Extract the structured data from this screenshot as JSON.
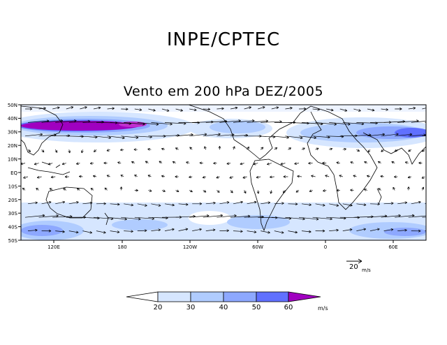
{
  "header": {
    "title": "INPE/CPTEC",
    "subtitle": "Vento em 200 hPa DEZ/2005"
  },
  "map": {
    "lat_labels": [
      "50N",
      "40N",
      "30N",
      "20N",
      "10N",
      "EQ",
      "10S",
      "20S",
      "30S",
      "40S",
      "50S"
    ],
    "lon_labels": [
      "120E",
      "180",
      "120W",
      "60W",
      "0",
      "60E"
    ]
  },
  "reference_vector": {
    "value": "20",
    "unit": "m/s"
  },
  "colorbar": {
    "ticks": [
      "20",
      "30",
      "40",
      "50",
      "60"
    ],
    "unit": "m/s",
    "colors": [
      "#ffffff",
      "#d6e6ff",
      "#b0ccff",
      "#8da8ff",
      "#6070ff",
      "#4040e6",
      "#a000c0"
    ]
  }
}
